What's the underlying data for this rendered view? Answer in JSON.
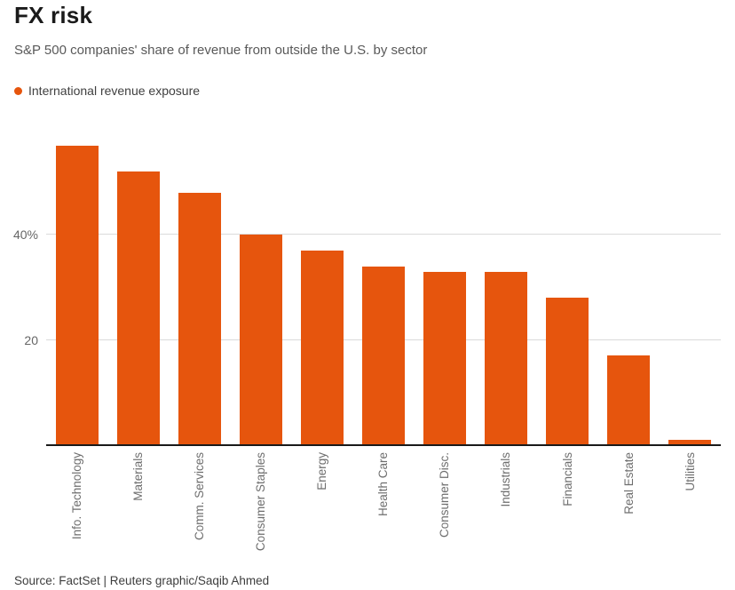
{
  "header": {
    "title": "FX risk",
    "subtitle": "S&P 500 companies' share of revenue from outside the U.S. by sector"
  },
  "legend": {
    "label": "International revenue exposure"
  },
  "chart_data": {
    "type": "bar",
    "title": "FX risk",
    "subtitle": "S&P 500 companies' share of revenue from outside the U.S. by sector",
    "series_name": "International revenue exposure",
    "categories": [
      "Info. Technology",
      "Materials",
      "Comm. Services",
      "Consumer Staples",
      "Energy",
      "Health Care",
      "Consumer Disc.",
      "Industrials",
      "Financials",
      "Real Estate",
      "Utilities"
    ],
    "values": [
      57,
      52,
      48,
      40,
      37,
      34,
      33,
      33,
      28,
      17,
      1
    ],
    "unit": "%",
    "xlabel": "",
    "ylabel": "",
    "yticks": [
      20,
      40
    ],
    "ytick_labels": [
      "20",
      "40%"
    ],
    "ylim": [
      0,
      61
    ],
    "grid": "horizontal",
    "legend_position": "top-left",
    "bar_color": "#e6550d"
  },
  "footer": {
    "source": "Source: FactSet | Reuters graphic/Saqib Ahmed"
  },
  "colors": {
    "bar": "#e6550d",
    "title": "#1a1a1a",
    "subtitle": "#595959",
    "axis_label": "#6e6e6e",
    "gridline": "#dadada",
    "baseline": "#1a1a1a"
  }
}
